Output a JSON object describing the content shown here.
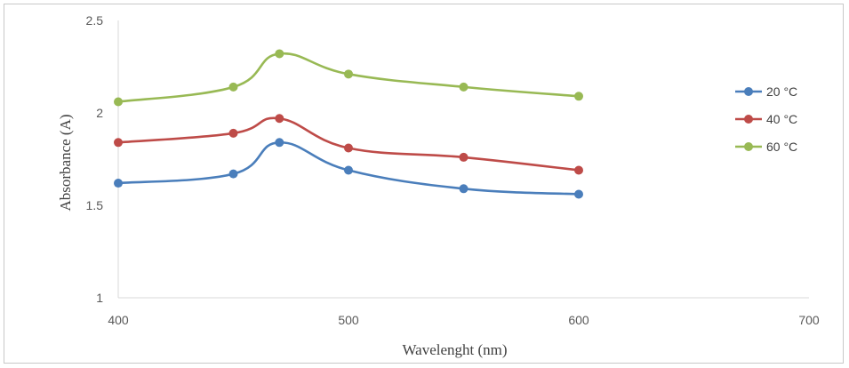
{
  "chart_data": {
    "type": "line",
    "title": "",
    "xlabel": "Wavelenght  (nm)",
    "ylabel": "Absorbance  (A)",
    "xlim": [
      400,
      700
    ],
    "ylim": [
      1,
      2.5
    ],
    "x_ticks": [
      400,
      500,
      600,
      700
    ],
    "y_ticks": [
      1,
      1.5,
      2,
      2.5
    ],
    "x_tick_labels": [
      "400",
      "500",
      "600",
      "700"
    ],
    "y_tick_labels": [
      "1",
      "1.5",
      "2",
      "2.5"
    ],
    "grid": false,
    "legend_position": "right",
    "smooth": true,
    "x": [
      400,
      450,
      470,
      500,
      550,
      600
    ],
    "series": [
      {
        "name": "20 °C",
        "color": "#4a7ebb",
        "values": [
          1.62,
          1.67,
          1.84,
          1.69,
          1.59,
          1.56
        ]
      },
      {
        "name": "40 °C",
        "color": "#be4b48",
        "values": [
          1.84,
          1.89,
          1.97,
          1.81,
          1.76,
          1.69
        ]
      },
      {
        "name": "60 °C",
        "color": "#98b954",
        "values": [
          2.06,
          2.14,
          2.32,
          2.21,
          2.14,
          2.09
        ]
      }
    ]
  }
}
